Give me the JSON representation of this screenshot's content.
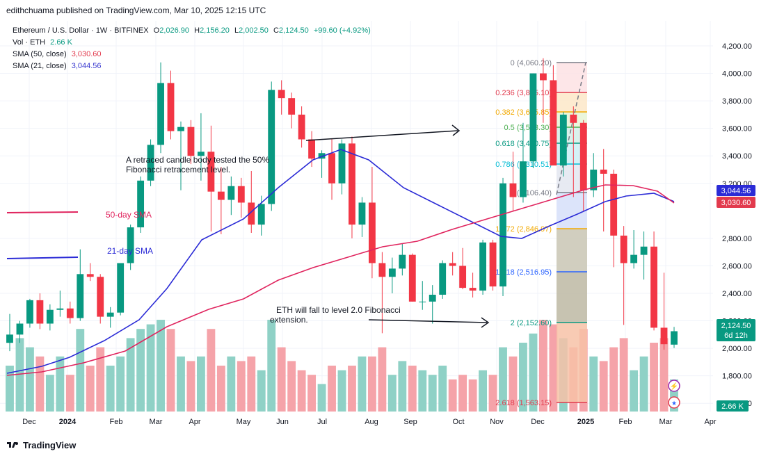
{
  "publisher": "edithchuama published on TradingView.com, Mar 10, 2025 12:15 UTC",
  "legend": {
    "symbol": "Ethereum / U.S. Dollar · 1W · BITFINEX",
    "open_label": "O",
    "open": "2,026.90",
    "high_label": "H",
    "high": "2,156.20",
    "low_label": "L",
    "low": "2,002.50",
    "close_label": "C",
    "close": "2,124.50",
    "change": "+99.60 (+4.92%)",
    "vol_label": "Vol · ETH",
    "vol": "2.66 K",
    "sma50_label": "SMA (50, close)",
    "sma50": "3,030.60",
    "sma21_label": "SMA (21, close)",
    "sma21": "3,044.56"
  },
  "colors": {
    "up": "#089981",
    "down": "#f23645",
    "sma50": "#e0245e",
    "sma21": "#2b2bd6",
    "volUp": "#8fd1c6",
    "volDown": "#f5a3a9"
  },
  "annotations": {
    "note1_line1": "A retraced candle body tested the 50%",
    "note1_line2": "Fibonacci retracement level.",
    "note2_line1": "ETH will fall to level 2.0 Fibonacci",
    "note2_line2": "extension.",
    "sma50_label": "50-day SMA",
    "sma21_label": "21-day SMA"
  },
  "fib_levels": [
    {
      "label": "0 (4,060.20)",
      "color": "#787b86"
    },
    {
      "label": "0.236 (3,835.10)",
      "color": "#e23a4d"
    },
    {
      "label": "0.382 (3,695.85)",
      "color": "#f2a900"
    },
    {
      "label": "0.5 (3,583.30)",
      "color": "#4caf50"
    },
    {
      "label": "0.618 (3,470.75)",
      "color": "#089981"
    },
    {
      "label": "0.786 (3,310.51)",
      "color": "#00bcd4"
    },
    {
      "label": "1 (3,106.40)",
      "color": "#787b86"
    },
    {
      "label": "1.272 (2,846.97)",
      "color": "#f2a900"
    },
    {
      "label": "1.618 (2,516.95)",
      "color": "#2962ff"
    },
    {
      "label": "2 (2,152.60)",
      "color": "#089981"
    },
    {
      "label": "2.618 (1,563.15)",
      "color": "#e23a4d"
    }
  ],
  "price_badges": {
    "sma21": "3,044.56",
    "sma50": "3,030.60",
    "last": "2,124.50",
    "countdown": "6d 12h",
    "volume": "2.66 K"
  },
  "footer": {
    "brand": "TradingView"
  },
  "chart_data": {
    "type": "candlestick",
    "yticks": [
      "4,200.00",
      "4,000.00",
      "3,800.00",
      "3,600.00",
      "3,400.00",
      "3,200.00",
      "2,800.00",
      "2,600.00",
      "2,400.00",
      "2,200.00",
      "2,000.00",
      "1,800.00",
      "1,600.00"
    ],
    "xticks": [
      "Dec",
      "2024",
      "Feb",
      "Mar",
      "Apr",
      "May",
      "Jun",
      "Jul",
      "Aug",
      "Sep",
      "Oct",
      "Nov",
      "Dec",
      "2025",
      "Feb",
      "Mar",
      "Apr"
    ],
    "ylim": [
      1500,
      4250
    ],
    "candles": [
      [
        2040,
        2250,
        1980,
        2100,
        0.5
      ],
      [
        2100,
        2200,
        2040,
        2180,
        0.8
      ],
      [
        2180,
        2360,
        2150,
        2350,
        0.7
      ],
      [
        2350,
        2400,
        2140,
        2180,
        0.6
      ],
      [
        2180,
        2320,
        2130,
        2280,
        0.4
      ],
      [
        2280,
        2420,
        2230,
        2290,
        0.6
      ],
      [
        2290,
        2340,
        2180,
        2220,
        0.4
      ],
      [
        2220,
        2720,
        2200,
        2540,
        0.9
      ],
      [
        2540,
        2620,
        2490,
        2520,
        0.5
      ],
      [
        2520,
        2540,
        2180,
        2230,
        0.7
      ],
      [
        2230,
        2300,
        2150,
        2260,
        0.5
      ],
      [
        2260,
        2600,
        2240,
        2620,
        0.6
      ],
      [
        2620,
        2900,
        2570,
        2880,
        0.8
      ],
      [
        2880,
        3250,
        2840,
        3220,
        0.9
      ],
      [
        3220,
        3520,
        3180,
        3480,
        0.95
      ],
      [
        3480,
        4080,
        3420,
        3930,
        1.0
      ],
      [
        3930,
        4020,
        3520,
        3580,
        0.9
      ],
      [
        3580,
        3650,
        3150,
        3610,
        0.6
      ],
      [
        3610,
        3660,
        3340,
        3400,
        0.55
      ],
      [
        3400,
        3710,
        3220,
        3430,
        0.6
      ],
      [
        3430,
        3620,
        2850,
        3140,
        0.9
      ],
      [
        3140,
        3320,
        2830,
        3080,
        0.5
      ],
      [
        3080,
        3250,
        2970,
        3180,
        0.6
      ],
      [
        3180,
        3240,
        2950,
        3060,
        0.55
      ],
      [
        3060,
        3290,
        2840,
        2900,
        0.6
      ],
      [
        2900,
        3110,
        2820,
        3050,
        0.45
      ],
      [
        3050,
        3940,
        3000,
        3880,
        1.0
      ],
      [
        3880,
        3950,
        3700,
        3820,
        0.7
      ],
      [
        3820,
        3860,
        3600,
        3700,
        0.55
      ],
      [
        3700,
        3760,
        3460,
        3520,
        0.45
      ],
      [
        3520,
        3580,
        3320,
        3380,
        0.4
      ],
      [
        3380,
        3440,
        3240,
        3420,
        0.3
      ],
      [
        3420,
        3520,
        3080,
        3200,
        0.5
      ],
      [
        3200,
        3520,
        3120,
        3490,
        0.45
      ],
      [
        3490,
        3540,
        2800,
        2900,
        0.5
      ],
      [
        2900,
        3100,
        2810,
        3060,
        0.6
      ],
      [
        3060,
        3320,
        2510,
        2620,
        0.6
      ],
      [
        2620,
        2700,
        2110,
        2520,
        0.7
      ],
      [
        2520,
        2660,
        2400,
        2580,
        0.4
      ],
      [
        2580,
        2760,
        2530,
        2680,
        0.55
      ],
      [
        2680,
        2690,
        2340,
        2340,
        0.5
      ],
      [
        2340,
        2490,
        2280,
        2340,
        0.45
      ],
      [
        2340,
        2460,
        2180,
        2390,
        0.4
      ],
      [
        2390,
        2640,
        2360,
        2620,
        0.5
      ],
      [
        2620,
        2700,
        2530,
        2600,
        0.35
      ],
      [
        2600,
        2730,
        2430,
        2440,
        0.4
      ],
      [
        2440,
        2550,
        2370,
        2420,
        0.35
      ],
      [
        2420,
        2790,
        2390,
        2770,
        0.45
      ],
      [
        2770,
        2790,
        2420,
        2450,
        0.4
      ],
      [
        2450,
        3240,
        2380,
        3200,
        0.7
      ],
      [
        3200,
        3430,
        3000,
        3100,
        0.6
      ],
      [
        3100,
        3640,
        3060,
        3360,
        0.75
      ],
      [
        3360,
        4000,
        3310,
        4000,
        0.85
      ],
      [
        4000,
        4110,
        3640,
        3950,
        1.0
      ],
      [
        3950,
        4060,
        3350,
        3330,
        0.95
      ],
      [
        3330,
        3720,
        3250,
        3700,
        0.8
      ],
      [
        3700,
        3760,
        3100,
        3640,
        0.7
      ],
      [
        3640,
        3660,
        3000,
        3150,
        0.9
      ],
      [
        3150,
        3420,
        3100,
        3300,
        0.6
      ],
      [
        3300,
        3450,
        2850,
        3270,
        0.55
      ],
      [
        3270,
        3300,
        2590,
        2820,
        0.7
      ],
      [
        2820,
        2890,
        2170,
        2620,
        0.8
      ],
      [
        2620,
        2860,
        2580,
        2680,
        0.45
      ],
      [
        2680,
        2850,
        2500,
        2740,
        0.6
      ],
      [
        2740,
        2850,
        2130,
        2150,
        0.75
      ],
      [
        2150,
        2550,
        1990,
        2030,
        0.8
      ],
      [
        2026.9,
        2156.2,
        2002.5,
        2124.5,
        0.35
      ]
    ],
    "sma21": [
      3080,
      3090,
      3100,
      3130,
      3160,
      3210,
      3260,
      3300,
      3340,
      3370,
      3400,
      3420,
      3430,
      3440,
      3450,
      3450,
      3440,
      3430,
      3410,
      3380,
      3340,
      3290,
      3230,
      3160,
      3080,
      3010,
      2960,
      2910,
      2880,
      2850,
      2840,
      2830,
      2840,
      2860,
      2900,
      2950,
      3000,
      3030,
      3050,
      3060,
      3060,
      3055,
      3050,
      3044.56
    ],
    "sma50": [
      2950,
      2960,
      2980,
      3000,
      3020,
      3040,
      3060,
      3080,
      3090,
      3100,
      3110,
      3120,
      3130,
      3135,
      3140,
      3140,
      3135,
      3130,
      3120,
      3110,
      3100,
      3090,
      3080,
      3070,
      3060,
      3055,
      3050,
      3045,
      3040,
      3035,
      3030.6
    ]
  }
}
